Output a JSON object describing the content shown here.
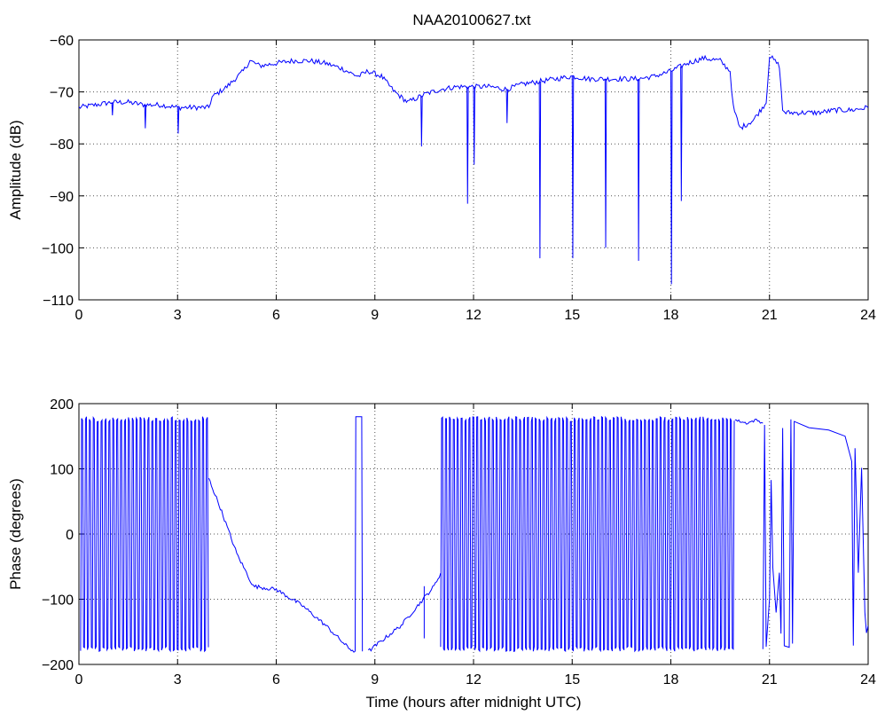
{
  "figure": {
    "title": "NAA20100627.txt",
    "line_color": "#0000ff"
  },
  "chart_data": [
    {
      "type": "line",
      "title": "NAA20100627.txt",
      "xlabel": "",
      "ylabel": "Amplitude (dB)",
      "xlim": [
        0,
        24
      ],
      "ylim": [
        -110,
        -60
      ],
      "xticks": [
        0,
        3,
        6,
        9,
        12,
        15,
        18,
        21,
        24
      ],
      "yticks": [
        -110,
        -100,
        -90,
        -80,
        -70,
        -60
      ],
      "xtick_labels": [
        "0",
        "3",
        "6",
        "9",
        "12",
        "15",
        "18",
        "21",
        "24"
      ],
      "ytick_labels": [
        "−110",
        "−100",
        "−90",
        "−80",
        "−70",
        "−60"
      ],
      "grid": true,
      "series": [
        {
          "color": "#0000ff",
          "x": [
            0,
            0.5,
            1,
            1.5,
            2,
            2.5,
            3,
            3.5,
            3.95,
            4.05,
            4.5,
            5,
            5.2,
            5.5,
            6,
            6.5,
            7,
            7.5,
            8,
            8.3,
            8.5,
            8.8,
            9.2,
            9.6,
            10,
            10.5,
            11,
            11.5,
            12,
            12.5,
            13,
            13.5,
            14,
            14.5,
            15,
            15.5,
            16,
            16.5,
            17,
            17.5,
            18,
            18.5,
            19,
            19.5,
            19.8,
            19.9,
            20.1,
            20.5,
            20.9,
            21.0,
            21.3,
            21.4,
            21.5,
            22,
            22.5,
            23,
            23.5,
            24
          ],
          "values": [
            -73,
            -72.5,
            -72,
            -72,
            -72.5,
            -72.5,
            -73,
            -73,
            -73,
            -71,
            -69,
            -66,
            -64,
            -65,
            -64.5,
            -64,
            -64,
            -64.5,
            -65.5,
            -66.5,
            -67,
            -66,
            -67,
            -70,
            -72,
            -70.5,
            -69.5,
            -69,
            -69,
            -69,
            -69.5,
            -68.5,
            -68,
            -67.5,
            -67,
            -67.5,
            -67.5,
            -67.5,
            -67.5,
            -67,
            -66,
            -64.5,
            -63.5,
            -64,
            -66,
            -73,
            -77,
            -75.5,
            -72,
            -63,
            -65,
            -73.5,
            -74,
            -74,
            -74,
            -73.5,
            -73.5,
            -73
          ],
          "dips": [
            {
              "x": 1.0,
              "y": -74.5
            },
            {
              "x": 2.0,
              "y": -77
            },
            {
              "x": 3.0,
              "y": -78
            },
            {
              "x": 10.4,
              "y": -80.5
            },
            {
              "x": 11.8,
              "y": -91.5
            },
            {
              "x": 12.0,
              "y": -84
            },
            {
              "x": 13.0,
              "y": -76
            },
            {
              "x": 14.0,
              "y": -102
            },
            {
              "x": 15.0,
              "y": -102
            },
            {
              "x": 16.0,
              "y": -100
            },
            {
              "x": 17.0,
              "y": -102.5
            },
            {
              "x": 18.0,
              "y": -107
            },
            {
              "x": 18.3,
              "y": -91
            }
          ]
        }
      ]
    },
    {
      "type": "line",
      "title": "",
      "xlabel": "Time (hours after midnight UTC)",
      "ylabel": "Phase (degrees)",
      "xlim": [
        0,
        24
      ],
      "ylim": [
        -200,
        200
      ],
      "xticks": [
        0,
        3,
        6,
        9,
        12,
        15,
        18,
        21,
        24
      ],
      "yticks": [
        -200,
        -100,
        0,
        100,
        200
      ],
      "xtick_labels": [
        "0",
        "3",
        "6",
        "9",
        "12",
        "15",
        "18",
        "21",
        "24"
      ],
      "ytick_labels": [
        "−200",
        "−100",
        "0",
        "100",
        "200"
      ],
      "grid": true,
      "series": [
        {
          "color": "#0000ff",
          "wrapping_segments": [
            [
              0.05,
              3.95
            ],
            [
              11.0,
              19.95
            ]
          ],
          "x": [
            3.95,
            4.3,
            4.8,
            5.3,
            6.0,
            6.8,
            7.5,
            8.2,
            8.4
          ],
          "values": [
            85,
            40,
            -30,
            -80,
            -85,
            -110,
            -140,
            -175,
            -180
          ],
          "x2": [
            8.8,
            9.3,
            9.8,
            10.3,
            10.8,
            11.0
          ],
          "values2": [
            -180,
            -160,
            -140,
            -110,
            -80,
            -60
          ],
          "x3": [
            19.95,
            20.3,
            20.6,
            20.8
          ],
          "values3": [
            175,
            170,
            175,
            170
          ]
        }
      ]
    }
  ]
}
